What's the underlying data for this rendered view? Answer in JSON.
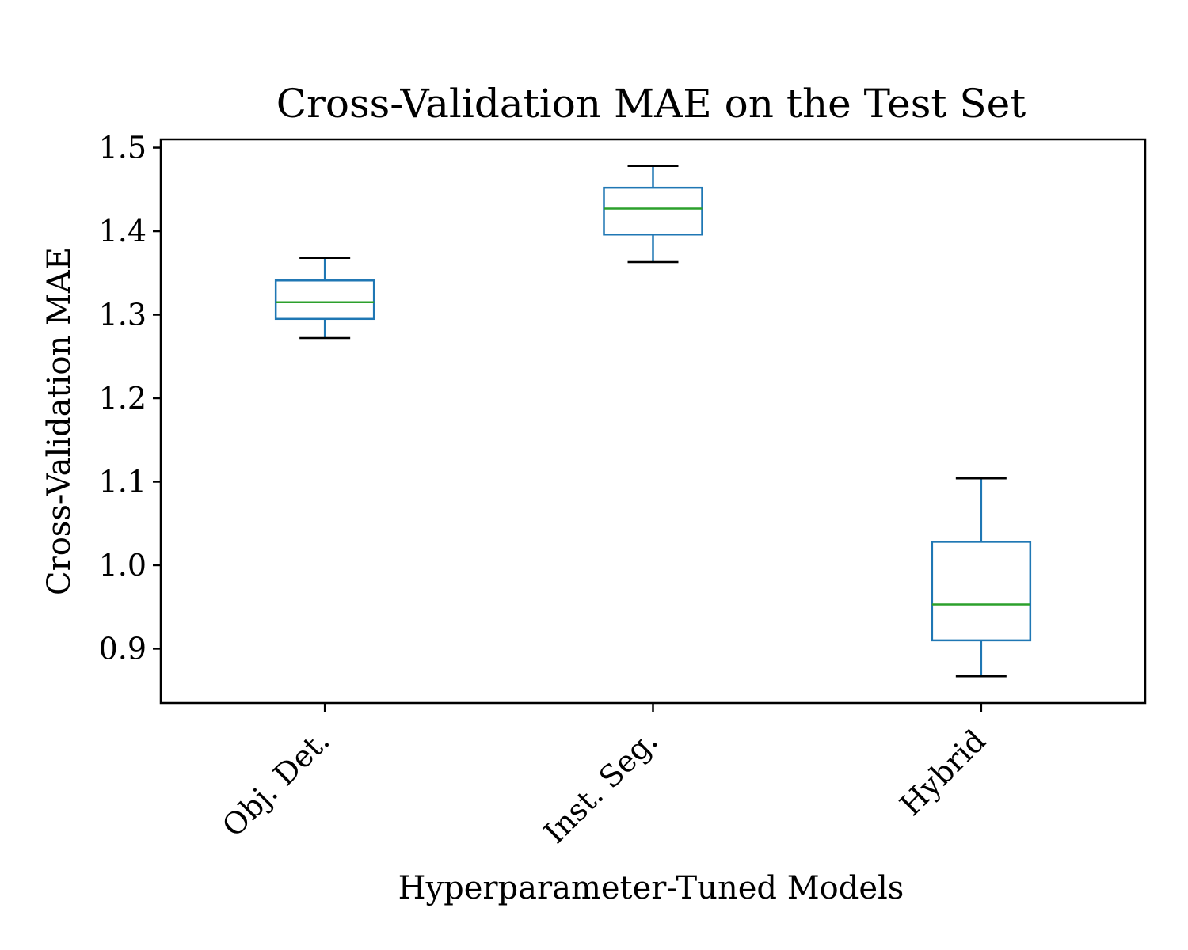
{
  "chart_data": {
    "type": "box",
    "title": "Cross-Validation MAE on the Test Set",
    "xlabel": "Hyperparameter-Tuned Models",
    "ylabel": "Cross-Validation MAE",
    "ylim": [
      0.835,
      1.51
    ],
    "yticks": [
      0.9,
      1.0,
      1.1,
      1.2,
      1.3,
      1.4,
      1.5
    ],
    "ytick_labels": [
      "0.9",
      "1.0",
      "1.1",
      "1.2",
      "1.3",
      "1.4",
      "1.5"
    ],
    "categories": [
      "Obj. Det.",
      "Inst. Seg.",
      "Hybrid"
    ],
    "boxes": [
      {
        "category": "Obj. Det.",
        "whisker_low": 1.272,
        "q1": 1.295,
        "median": 1.315,
        "q3": 1.341,
        "whisker_high": 1.368
      },
      {
        "category": "Inst. Seg.",
        "whisker_low": 1.363,
        "q1": 1.396,
        "median": 1.427,
        "q3": 1.452,
        "whisker_high": 1.478
      },
      {
        "category": "Hybrid",
        "whisker_low": 0.867,
        "q1": 0.91,
        "median": 0.953,
        "q3": 1.028,
        "whisker_high": 1.104
      }
    ],
    "colors": {
      "box": "#1f77b4",
      "median": "#2ca02c",
      "caps": "#000000",
      "axes": "#000000"
    },
    "grid": false,
    "legend": "none"
  }
}
